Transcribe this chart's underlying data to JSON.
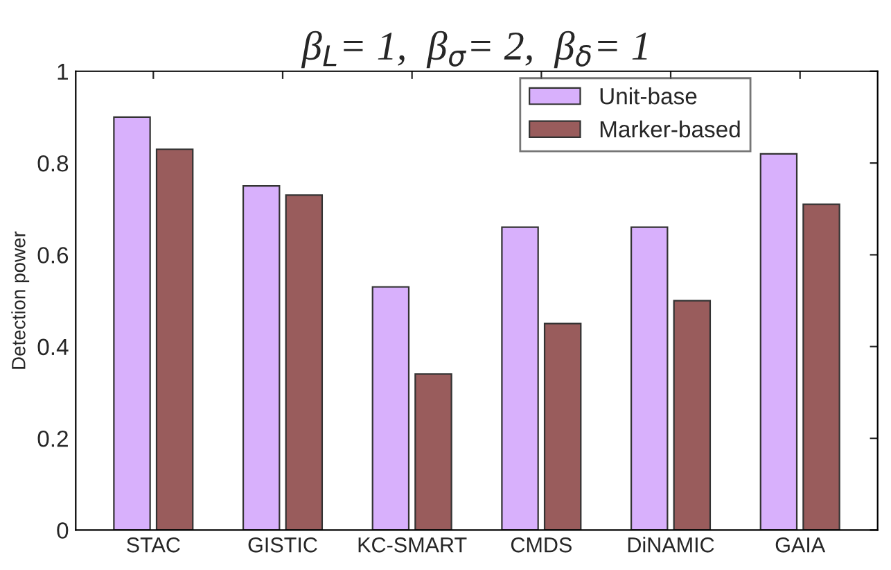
{
  "chart_data": {
    "type": "bar",
    "title": "β$_{L}$= 1,  β$_{σ}$= 2,  β$_{δ}$= 1",
    "ylabel": "Detection power",
    "categories": [
      "STAC",
      "GISTIC",
      "KC-SMART",
      "CMDS",
      "DiNAMIC",
      "GAIA"
    ],
    "series": [
      {
        "name": "Unit-base",
        "color": "#d8b0fc",
        "values": [
          0.9,
          0.75,
          0.53,
          0.66,
          0.66,
          0.82
        ]
      },
      {
        "name": "Marker-based",
        "color": "#995c5c",
        "values": [
          0.83,
          0.73,
          0.34,
          0.45,
          0.5,
          0.71
        ]
      }
    ],
    "ylim": [
      0,
      1
    ],
    "yticks": [
      0,
      0.2,
      0.4,
      0.6,
      0.8,
      1
    ],
    "grid": false,
    "legend": "top right"
  }
}
